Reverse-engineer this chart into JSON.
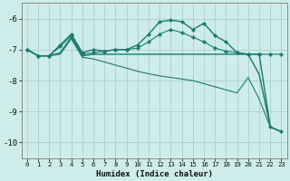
{
  "xlabel": "Humidex (Indice chaleur)",
  "background_color": "#ceecea",
  "grid_color": "#aed4d0",
  "line_color": "#1a7a6e",
  "x_min": -0.5,
  "x_max": 23.5,
  "y_min": -10.5,
  "y_max": -5.5,
  "yticks": [
    -10,
    -9,
    -8,
    -7,
    -6
  ],
  "xticks": [
    0,
    1,
    2,
    3,
    4,
    5,
    6,
    7,
    8,
    9,
    10,
    11,
    12,
    13,
    14,
    15,
    16,
    17,
    18,
    19,
    20,
    21,
    22,
    23
  ],
  "lines": [
    {
      "x": [
        0,
        1,
        2,
        3,
        4,
        5,
        6,
        7,
        8,
        9,
        10,
        11,
        12,
        13,
        14,
        15,
        16,
        17,
        18,
        19,
        20,
        21,
        22,
        23
      ],
      "y": [
        -7.0,
        -7.2,
        -7.2,
        -6.85,
        -6.5,
        -7.1,
        -7.0,
        -7.05,
        -7.0,
        -7.0,
        -6.85,
        -6.5,
        -6.1,
        -6.05,
        -6.1,
        -6.35,
        -6.15,
        -6.55,
        -6.75,
        -7.1,
        -7.15,
        -7.15,
        -9.5,
        -9.65
      ],
      "marker": "D",
      "markersize": 2.0,
      "linewidth": 1.0
    },
    {
      "x": [
        0,
        1,
        2,
        3,
        4,
        5,
        6,
        7,
        8,
        9,
        10,
        11,
        12,
        13,
        14,
        15,
        16,
        17,
        18,
        19,
        20,
        21,
        22,
        23
      ],
      "y": [
        -7.0,
        -7.2,
        -7.2,
        -6.9,
        -6.55,
        -7.15,
        -7.1,
        -7.05,
        -7.0,
        -7.0,
        -6.95,
        -6.75,
        -6.5,
        -6.35,
        -6.45,
        -6.6,
        -6.75,
        -6.95,
        -7.05,
        -7.1,
        -7.15,
        -7.15,
        -7.15,
        -7.15
      ],
      "marker": "P",
      "markersize": 2.5,
      "linewidth": 0.8
    },
    {
      "x": [
        0,
        1,
        2,
        3,
        4,
        5,
        6,
        7,
        8,
        9,
        10,
        11,
        12,
        13,
        14,
        15,
        16,
        17,
        18,
        19,
        20,
        21,
        22,
        23
      ],
      "y": [
        -7.0,
        -7.2,
        -7.2,
        -7.1,
        -6.6,
        -7.2,
        -7.15,
        -7.15,
        -7.15,
        -7.15,
        -7.15,
        -7.15,
        -7.15,
        -7.15,
        -7.15,
        -7.15,
        -7.15,
        -7.15,
        -7.15,
        -7.15,
        -7.15,
        -7.8,
        -9.5,
        -9.65
      ],
      "marker": null,
      "markersize": 0,
      "linewidth": 1.0
    },
    {
      "x": [
        0,
        1,
        2,
        3,
        4,
        5,
        6,
        7,
        8,
        9,
        10,
        11,
        12,
        13,
        14,
        15,
        16,
        17,
        18,
        19,
        20,
        21,
        22,
        23
      ],
      "y": [
        -7.0,
        -7.2,
        -7.2,
        -7.15,
        -6.65,
        -7.25,
        -7.3,
        -7.4,
        -7.5,
        -7.6,
        -7.7,
        -7.78,
        -7.85,
        -7.9,
        -7.95,
        -8.0,
        -8.1,
        -8.2,
        -8.3,
        -8.4,
        -7.9,
        -8.6,
        -9.5,
        -9.65
      ],
      "marker": null,
      "markersize": 0,
      "linewidth": 0.8
    }
  ]
}
